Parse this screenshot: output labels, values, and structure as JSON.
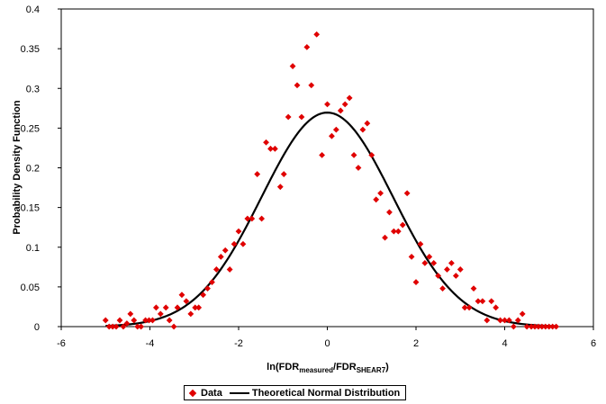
{
  "chart_data": {
    "type": "scatter",
    "ylabel": "Probability Density Function",
    "xlabel": {
      "prefix": "ln(FDR",
      "sub1": "measured",
      "mid": "/FDR",
      "sub2": "SHEAR7",
      "suffix": ")"
    },
    "xlim": [
      -6,
      6
    ],
    "ylim": [
      0,
      0.4
    ],
    "xticks": [
      -6,
      -4,
      -2,
      0,
      2,
      4,
      6
    ],
    "yticks": [
      0,
      0.05,
      0.1,
      0.15,
      0.2,
      0.25,
      0.3,
      0.35,
      0.4
    ],
    "ytick_labels": [
      "0",
      "0.05",
      "0.1",
      "0.15",
      "0.2",
      "0.25",
      "0.3",
      "0.35",
      "0.4"
    ],
    "grid": false,
    "legend_position": "bottom",
    "series": [
      {
        "name": "Data",
        "kind": "scatter",
        "color": "#e00000",
        "marker": "diamond",
        "points": [
          [
            -5.0,
            0.008
          ],
          [
            -4.92,
            0.0
          ],
          [
            -4.84,
            0.0
          ],
          [
            -4.76,
            0.0
          ],
          [
            -4.68,
            0.008
          ],
          [
            -4.6,
            0.0
          ],
          [
            -4.52,
            0.004
          ],
          [
            -4.44,
            0.016
          ],
          [
            -4.36,
            0.008
          ],
          [
            -4.28,
            0.0
          ],
          [
            -4.2,
            0.0
          ],
          [
            -4.1,
            0.008
          ],
          [
            -4.02,
            0.008
          ],
          [
            -3.94,
            0.008
          ],
          [
            -3.86,
            0.024
          ],
          [
            -3.76,
            0.016
          ],
          [
            -3.64,
            0.024
          ],
          [
            -3.56,
            0.008
          ],
          [
            -3.46,
            0.0
          ],
          [
            -3.38,
            0.024
          ],
          [
            -3.28,
            0.04
          ],
          [
            -3.18,
            0.032
          ],
          [
            -3.08,
            0.016
          ],
          [
            -2.98,
            0.024
          ],
          [
            -2.9,
            0.024
          ],
          [
            -2.8,
            0.04
          ],
          [
            -2.7,
            0.048
          ],
          [
            -2.6,
            0.056
          ],
          [
            -2.5,
            0.072
          ],
          [
            -2.4,
            0.088
          ],
          [
            -2.3,
            0.096
          ],
          [
            -2.2,
            0.072
          ],
          [
            -2.1,
            0.104
          ],
          [
            -2.0,
            0.12
          ],
          [
            -1.9,
            0.104
          ],
          [
            -1.8,
            0.136
          ],
          [
            -1.7,
            0.136
          ],
          [
            -1.58,
            0.192
          ],
          [
            -1.48,
            0.136
          ],
          [
            -1.38,
            0.232
          ],
          [
            -1.28,
            0.224
          ],
          [
            -1.18,
            0.224
          ],
          [
            -1.06,
            0.176
          ],
          [
            -0.98,
            0.192
          ],
          [
            -0.88,
            0.264
          ],
          [
            -0.78,
            0.328
          ],
          [
            -0.68,
            0.304
          ],
          [
            -0.58,
            0.264
          ],
          [
            -0.46,
            0.352
          ],
          [
            -0.36,
            0.304
          ],
          [
            -0.24,
            0.368
          ],
          [
            -0.12,
            0.216
          ],
          [
            0.0,
            0.28
          ],
          [
            0.1,
            0.24
          ],
          [
            0.2,
            0.248
          ],
          [
            0.3,
            0.272
          ],
          [
            0.4,
            0.28
          ],
          [
            0.5,
            0.288
          ],
          [
            0.6,
            0.216
          ],
          [
            0.7,
            0.2
          ],
          [
            0.8,
            0.248
          ],
          [
            0.9,
            0.256
          ],
          [
            1.0,
            0.216
          ],
          [
            1.1,
            0.16
          ],
          [
            1.2,
            0.168
          ],
          [
            1.3,
            0.112
          ],
          [
            1.4,
            0.144
          ],
          [
            1.5,
            0.12
          ],
          [
            1.6,
            0.12
          ],
          [
            1.7,
            0.128
          ],
          [
            1.8,
            0.168
          ],
          [
            1.9,
            0.088
          ],
          [
            2.0,
            0.056
          ],
          [
            2.1,
            0.104
          ],
          [
            2.2,
            0.08
          ],
          [
            2.3,
            0.088
          ],
          [
            2.4,
            0.08
          ],
          [
            2.5,
            0.064
          ],
          [
            2.6,
            0.048
          ],
          [
            2.7,
            0.072
          ],
          [
            2.8,
            0.08
          ],
          [
            2.9,
            0.064
          ],
          [
            3.0,
            0.072
          ],
          [
            3.1,
            0.024
          ],
          [
            3.2,
            0.024
          ],
          [
            3.3,
            0.048
          ],
          [
            3.4,
            0.032
          ],
          [
            3.5,
            0.032
          ],
          [
            3.6,
            0.008
          ],
          [
            3.7,
            0.032
          ],
          [
            3.8,
            0.024
          ],
          [
            3.9,
            0.008
          ],
          [
            4.0,
            0.008
          ],
          [
            4.1,
            0.008
          ],
          [
            4.2,
            0.0
          ],
          [
            4.3,
            0.008
          ],
          [
            4.4,
            0.016
          ],
          [
            4.5,
            0.0
          ],
          [
            4.6,
            0.0
          ],
          [
            4.68,
            0.0
          ],
          [
            4.76,
            0.0
          ],
          [
            4.84,
            0.0
          ],
          [
            4.92,
            0.0
          ],
          [
            5.0,
            0.0
          ],
          [
            5.08,
            0.0
          ],
          [
            5.16,
            0.0
          ]
        ]
      },
      {
        "name": "Theoretical Normal Distribution",
        "kind": "line",
        "color": "#000000",
        "distribution": {
          "mean": 0.0,
          "std": 1.48
        },
        "x_range": [
          -5.0,
          5.2
        ]
      }
    ]
  }
}
